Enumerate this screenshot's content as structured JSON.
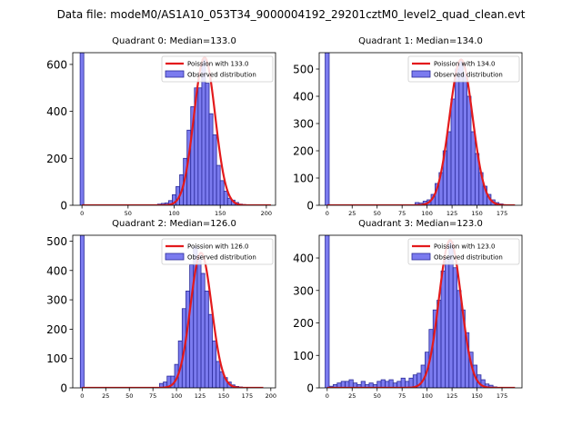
{
  "suptitle": "Data file: modeM0/AS1A10_053T34_9000004192_29201cztM0_level2_quad_clean.evt",
  "colors": {
    "bar_fill": "#7b7bef",
    "bar_edge": "#2a2a9a",
    "curve": "#e31a1c",
    "axis": "#000000"
  },
  "chart_data": [
    {
      "type": "bar",
      "title": "Quadrant 0: Median=133.0",
      "median": 133.0,
      "bin_width": 4,
      "xlim": [
        -10,
        210
      ],
      "ylim": [
        0,
        650
      ],
      "xticks": [
        0,
        50,
        100,
        150,
        200
      ],
      "yticks": [
        0,
        200,
        400,
        600
      ],
      "spike": {
        "x": 0,
        "value": 650
      },
      "bins": [
        {
          "x": 80,
          "value": 2
        },
        {
          "x": 84,
          "value": 5
        },
        {
          "x": 88,
          "value": 8
        },
        {
          "x": 92,
          "value": 10
        },
        {
          "x": 96,
          "value": 20
        },
        {
          "x": 100,
          "value": 45
        },
        {
          "x": 104,
          "value": 80
        },
        {
          "x": 108,
          "value": 130
        },
        {
          "x": 112,
          "value": 200
        },
        {
          "x": 116,
          "value": 320
        },
        {
          "x": 120,
          "value": 420
        },
        {
          "x": 124,
          "value": 500
        },
        {
          "x": 128,
          "value": 500
        },
        {
          "x": 132,
          "value": 620
        },
        {
          "x": 136,
          "value": 520
        },
        {
          "x": 140,
          "value": 390
        },
        {
          "x": 144,
          "value": 300
        },
        {
          "x": 148,
          "value": 170
        },
        {
          "x": 152,
          "value": 105
        },
        {
          "x": 156,
          "value": 60
        },
        {
          "x": 160,
          "value": 30
        },
        {
          "x": 164,
          "value": 22
        },
        {
          "x": 168,
          "value": 12
        },
        {
          "x": 172,
          "value": 5
        },
        {
          "x": 176,
          "value": 3
        },
        {
          "x": 180,
          "value": 1
        }
      ],
      "curve": {
        "mean": 133.0,
        "peak": 630,
        "x_range": [
          0,
          205
        ]
      },
      "legend": [
        "Poission with 133.0",
        "Observed distribution"
      ]
    },
    {
      "type": "bar",
      "title": "Quadrant 1: Median=134.0",
      "median": 134.0,
      "bin_width": 4,
      "xlim": [
        -8,
        195
      ],
      "ylim": [
        0,
        560
      ],
      "xticks": [
        0,
        25,
        50,
        75,
        100,
        125,
        150,
        175
      ],
      "yticks": [
        0,
        100,
        200,
        300,
        400,
        500
      ],
      "spike": {
        "x": 0,
        "value": 560
      },
      "bins": [
        {
          "x": 90,
          "value": 10
        },
        {
          "x": 94,
          "value": 8
        },
        {
          "x": 98,
          "value": 15
        },
        {
          "x": 102,
          "value": 20
        },
        {
          "x": 106,
          "value": 40
        },
        {
          "x": 110,
          "value": 80
        },
        {
          "x": 114,
          "value": 120
        },
        {
          "x": 118,
          "value": 200
        },
        {
          "x": 122,
          "value": 270
        },
        {
          "x": 126,
          "value": 390
        },
        {
          "x": 130,
          "value": 500
        },
        {
          "x": 134,
          "value": 530
        },
        {
          "x": 138,
          "value": 480
        },
        {
          "x": 142,
          "value": 400
        },
        {
          "x": 146,
          "value": 270
        },
        {
          "x": 150,
          "value": 190
        },
        {
          "x": 154,
          "value": 120
        },
        {
          "x": 158,
          "value": 70
        },
        {
          "x": 162,
          "value": 40
        },
        {
          "x": 166,
          "value": 20
        },
        {
          "x": 170,
          "value": 10
        },
        {
          "x": 174,
          "value": 5
        },
        {
          "x": 178,
          "value": 2
        }
      ],
      "curve": {
        "mean": 134.0,
        "peak": 535,
        "x_range": [
          0,
          188
        ]
      },
      "legend": [
        "Poission with 134.0",
        "Observed distribution"
      ]
    },
    {
      "type": "bar",
      "title": "Quadrant 2: Median=126.0",
      "median": 126.0,
      "bin_width": 4,
      "xlim": [
        -10,
        205
      ],
      "ylim": [
        0,
        520
      ],
      "xticks": [
        0,
        25,
        50,
        75,
        100,
        125,
        150,
        175,
        200
      ],
      "yticks": [
        0,
        100,
        200,
        300,
        400,
        500
      ],
      "spike": {
        "x": 0,
        "value": 520
      },
      "bins": [
        {
          "x": 84,
          "value": 15
        },
        {
          "x": 88,
          "value": 20
        },
        {
          "x": 92,
          "value": 40
        },
        {
          "x": 96,
          "value": 40
        },
        {
          "x": 100,
          "value": 80
        },
        {
          "x": 104,
          "value": 160
        },
        {
          "x": 108,
          "value": 270
        },
        {
          "x": 112,
          "value": 330
        },
        {
          "x": 116,
          "value": 420
        },
        {
          "x": 120,
          "value": 480
        },
        {
          "x": 124,
          "value": 450
        },
        {
          "x": 128,
          "value": 390
        },
        {
          "x": 132,
          "value": 330
        },
        {
          "x": 136,
          "value": 250
        },
        {
          "x": 140,
          "value": 160
        },
        {
          "x": 144,
          "value": 90
        },
        {
          "x": 148,
          "value": 55
        },
        {
          "x": 152,
          "value": 35
        },
        {
          "x": 156,
          "value": 20
        },
        {
          "x": 160,
          "value": 10
        },
        {
          "x": 164,
          "value": 5
        },
        {
          "x": 168,
          "value": 3
        }
      ],
      "curve": {
        "mean": 126.0,
        "peak": 460,
        "x_range": [
          0,
          192
        ]
      },
      "legend": [
        "Poission with 126.0",
        "Observed distribution"
      ]
    },
    {
      "type": "bar",
      "title": "Quadrant 3: Median=123.0",
      "median": 123.0,
      "bin_width": 4,
      "xlim": [
        -8,
        195
      ],
      "ylim": [
        0,
        470
      ],
      "xticks": [
        0,
        25,
        50,
        75,
        100,
        125,
        150,
        175
      ],
      "yticks": [
        0,
        100,
        200,
        300,
        400
      ],
      "spike": {
        "x": 0,
        "value": 470
      },
      "bins": [
        {
          "x": 4,
          "value": 5
        },
        {
          "x": 8,
          "value": 10
        },
        {
          "x": 12,
          "value": 15
        },
        {
          "x": 16,
          "value": 20
        },
        {
          "x": 20,
          "value": 20
        },
        {
          "x": 24,
          "value": 25
        },
        {
          "x": 28,
          "value": 15
        },
        {
          "x": 32,
          "value": 10
        },
        {
          "x": 36,
          "value": 20
        },
        {
          "x": 40,
          "value": 10
        },
        {
          "x": 44,
          "value": 15
        },
        {
          "x": 48,
          "value": 10
        },
        {
          "x": 52,
          "value": 20
        },
        {
          "x": 56,
          "value": 25
        },
        {
          "x": 60,
          "value": 20
        },
        {
          "x": 64,
          "value": 25
        },
        {
          "x": 68,
          "value": 15
        },
        {
          "x": 72,
          "value": 20
        },
        {
          "x": 76,
          "value": 30
        },
        {
          "x": 80,
          "value": 20
        },
        {
          "x": 84,
          "value": 30
        },
        {
          "x": 88,
          "value": 40
        },
        {
          "x": 92,
          "value": 45
        },
        {
          "x": 96,
          "value": 70
        },
        {
          "x": 100,
          "value": 110
        },
        {
          "x": 104,
          "value": 180
        },
        {
          "x": 108,
          "value": 240
        },
        {
          "x": 112,
          "value": 270
        },
        {
          "x": 116,
          "value": 360
        },
        {
          "x": 120,
          "value": 400
        },
        {
          "x": 124,
          "value": 450
        },
        {
          "x": 128,
          "value": 370
        },
        {
          "x": 132,
          "value": 300
        },
        {
          "x": 136,
          "value": 240
        },
        {
          "x": 140,
          "value": 170
        },
        {
          "x": 144,
          "value": 110
        },
        {
          "x": 148,
          "value": 70
        },
        {
          "x": 152,
          "value": 40
        },
        {
          "x": 156,
          "value": 25
        },
        {
          "x": 160,
          "value": 12
        },
        {
          "x": 164,
          "value": 8
        },
        {
          "x": 168,
          "value": 3
        }
      ],
      "curve": {
        "mean": 123.0,
        "peak": 455,
        "x_range": [
          0,
          188
        ]
      },
      "legend": [
        "Poission with 123.0",
        "Observed distribution"
      ]
    }
  ]
}
